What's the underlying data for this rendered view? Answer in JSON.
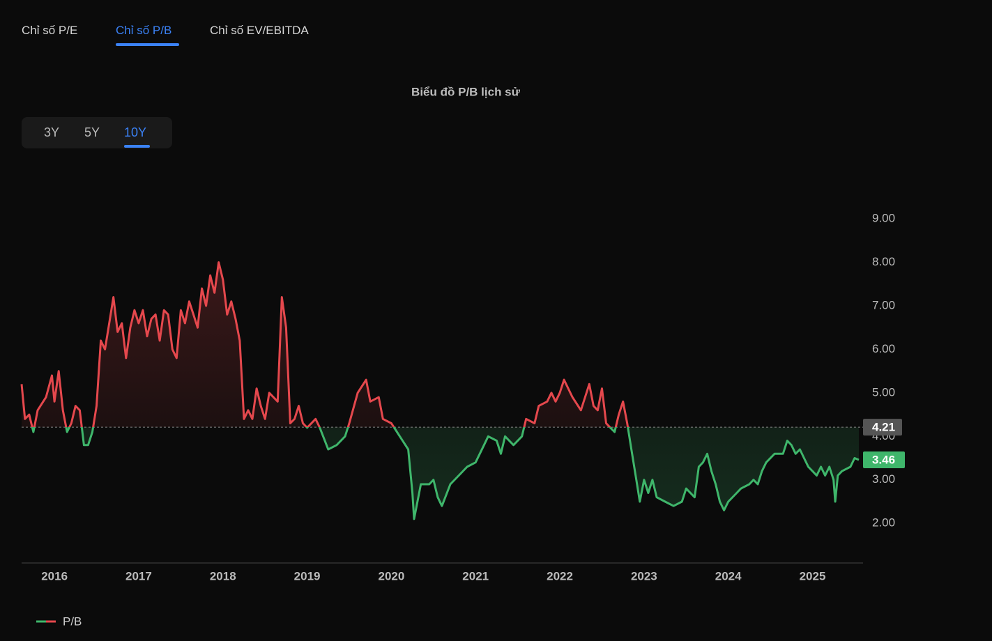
{
  "tabs": [
    "Chỉ số P/E",
    "Chỉ số P/B",
    "Chỉ số EV/EBITDA"
  ],
  "periods": [
    "3Y",
    "5Y",
    "10Y"
  ],
  "chart_data": {
    "type": "line",
    "title": "Biểu đồ P/B lịch sử",
    "x": [
      2015.61,
      2015.65,
      2015.7,
      2015.75,
      2015.8,
      2015.9,
      2015.97,
      2016.0,
      2016.05,
      2016.1,
      2016.15,
      2016.2,
      2016.25,
      2016.3,
      2016.35,
      2016.4,
      2016.45,
      2016.5,
      2016.55,
      2016.6,
      2016.65,
      2016.7,
      2016.75,
      2016.8,
      2016.85,
      2016.9,
      2016.95,
      2017.0,
      2017.05,
      2017.1,
      2017.15,
      2017.2,
      2017.25,
      2017.3,
      2017.35,
      2017.4,
      2017.45,
      2017.5,
      2017.55,
      2017.6,
      2017.65,
      2017.7,
      2017.75,
      2017.8,
      2017.85,
      2017.9,
      2017.95,
      2018.0,
      2018.05,
      2018.1,
      2018.15,
      2018.2,
      2018.25,
      2018.3,
      2018.35,
      2018.4,
      2018.45,
      2018.5,
      2018.55,
      2018.65,
      2018.7,
      2018.75,
      2018.8,
      2018.85,
      2018.9,
      2018.95,
      2019.0,
      2019.1,
      2019.15,
      2019.25,
      2019.35,
      2019.45,
      2019.5,
      2019.6,
      2019.7,
      2019.75,
      2019.85,
      2019.9,
      2020.0,
      2020.1,
      2020.2,
      2020.25,
      2020.27,
      2020.35,
      2020.45,
      2020.5,
      2020.55,
      2020.6,
      2020.7,
      2020.8,
      2020.9,
      2021.0,
      2021.1,
      2021.15,
      2021.25,
      2021.3,
      2021.35,
      2021.45,
      2021.55,
      2021.6,
      2021.7,
      2021.75,
      2021.85,
      2021.9,
      2021.95,
      2022.0,
      2022.05,
      2022.15,
      2022.25,
      2022.3,
      2022.35,
      2022.4,
      2022.45,
      2022.5,
      2022.55,
      2022.6,
      2022.65,
      2022.7,
      2022.75,
      2022.8,
      2022.85,
      2022.9,
      2022.95,
      2023.0,
      2023.05,
      2023.1,
      2023.15,
      2023.25,
      2023.35,
      2023.45,
      2023.5,
      2023.6,
      2023.65,
      2023.7,
      2023.75,
      2023.8,
      2023.85,
      2023.9,
      2023.95,
      2024.0,
      2024.1,
      2024.15,
      2024.25,
      2024.3,
      2024.35,
      2024.4,
      2024.45,
      2024.55,
      2024.65,
      2024.7,
      2024.75,
      2024.8,
      2024.85,
      2024.9,
      2024.95,
      2025.0,
      2025.05,
      2025.1,
      2025.15,
      2025.2,
      2025.25,
      2025.27,
      2025.3,
      2025.35,
      2025.45,
      2025.5,
      2025.55
    ],
    "series": [
      {
        "name": "P/B",
        "color": "#e5484d",
        "color_below": "#3fb66b",
        "values": [
          5.2,
          4.4,
          4.5,
          4.1,
          4.6,
          4.9,
          5.4,
          4.8,
          5.5,
          4.6,
          4.1,
          4.3,
          4.7,
          4.6,
          3.8,
          3.8,
          4.1,
          4.7,
          6.2,
          6.0,
          6.6,
          7.2,
          6.4,
          6.6,
          5.8,
          6.5,
          6.9,
          6.6,
          6.9,
          6.3,
          6.7,
          6.8,
          6.2,
          6.9,
          6.8,
          6.0,
          5.8,
          6.9,
          6.6,
          7.1,
          6.8,
          6.5,
          7.4,
          7.0,
          7.7,
          7.3,
          8.0,
          7.6,
          6.8,
          7.1,
          6.7,
          6.2,
          4.4,
          4.6,
          4.4,
          5.1,
          4.7,
          4.4,
          5.0,
          4.8,
          7.2,
          6.5,
          4.3,
          4.4,
          4.7,
          4.3,
          4.2,
          4.4,
          4.2,
          3.7,
          3.8,
          4.0,
          4.3,
          5.0,
          5.3,
          4.8,
          4.9,
          4.4,
          4.3,
          4.0,
          3.7,
          2.7,
          2.1,
          2.9,
          2.9,
          3.0,
          2.6,
          2.4,
          2.9,
          3.1,
          3.3,
          3.4,
          3.8,
          4.0,
          3.9,
          3.6,
          4.0,
          3.8,
          4.0,
          4.4,
          4.3,
          4.7,
          4.8,
          5.0,
          4.8,
          5.0,
          5.3,
          4.9,
          4.6,
          4.9,
          5.2,
          4.7,
          4.6,
          5.1,
          4.3,
          4.2,
          4.1,
          4.5,
          4.8,
          4.3,
          3.7,
          3.1,
          2.5,
          3.0,
          2.7,
          3.0,
          2.6,
          2.5,
          2.4,
          2.5,
          2.8,
          2.6,
          3.3,
          3.4,
          3.6,
          3.2,
          2.9,
          2.5,
          2.3,
          2.5,
          2.7,
          2.8,
          2.9,
          3.0,
          2.9,
          3.2,
          3.4,
          3.6,
          3.6,
          3.9,
          3.8,
          3.6,
          3.7,
          3.5,
          3.3,
          3.2,
          3.1,
          3.3,
          3.1,
          3.3,
          3.0,
          2.5,
          3.1,
          3.2,
          3.3,
          3.5,
          3.46
        ]
      }
    ],
    "baseline": 4.21,
    "xlim": [
      2015.61,
      2025.6
    ],
    "ylim": [
      1.09,
      10.0
    ],
    "xticks": [
      2016,
      2017,
      2018,
      2019,
      2020,
      2021,
      2022,
      2023,
      2024,
      2025
    ],
    "yticks": [
      {
        "value": 2,
        "label": "2.00"
      },
      {
        "value": 3,
        "label": "3.00"
      },
      {
        "value": 4,
        "label": "4.00"
      },
      {
        "value": 5,
        "label": "5.00"
      },
      {
        "value": 6,
        "label": "6.00"
      },
      {
        "value": 7,
        "label": "7.00"
      },
      {
        "value": 8,
        "label": "8.00"
      },
      {
        "value": 9,
        "label": "9.00"
      }
    ],
    "grid": false
  }
}
